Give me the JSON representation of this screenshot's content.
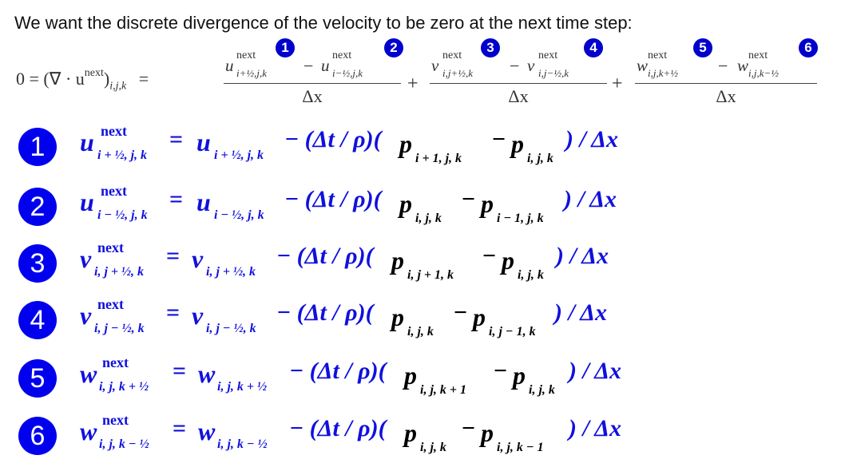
{
  "intro": "We want the discrete divergence of the velocity to be zero at the next time step:",
  "divergence": {
    "lhs": "0 = (∇ · u",
    "lhs_sup": "next",
    "lhs_close": ")",
    "lhs_sub": "i,j,k",
    "equals": "=",
    "plus": "+",
    "minus": "−",
    "next": "next",
    "denominator": "Δx",
    "fractions": [
      {
        "var": "u",
        "sub_a": "i+½,j,k",
        "sub_b": "i−½,j,k",
        "badge_a": "1",
        "badge_b": "2"
      },
      {
        "var": "v",
        "sub_a": "i,j+½,k",
        "sub_b": "i,j−½,k",
        "badge_a": "3",
        "badge_b": "4"
      },
      {
        "var": "w",
        "sub_a": "i,j,k+½",
        "sub_b": "i,j,k−½",
        "badge_a": "5",
        "badge_b": "6"
      }
    ]
  },
  "updates": [
    {
      "badge": "1",
      "var": "u",
      "next": "next",
      "sub": "i + ½, j, k",
      "coef": "− (Δt / ρ)(",
      "p": "p",
      "p1_sub": "i + 1, j, k",
      "minus": "−",
      "p2_sub": "i, j, k",
      "tail": ") / Δx"
    },
    {
      "badge": "2",
      "var": "u",
      "next": "next",
      "sub": "i − ½, j, k",
      "coef": "− (Δt / ρ)(",
      "p": "p",
      "p1_sub": "i, j, k",
      "minus": "−",
      "p2_sub": "i − 1, j, k",
      "tail": ") / Δx"
    },
    {
      "badge": "3",
      "var": "v",
      "next": "next",
      "sub": "i, j + ½, k",
      "coef": "− (Δt / ρ)(",
      "p": "p",
      "p1_sub": "i, j + 1, k",
      "minus": "−",
      "p2_sub": "i, j, k",
      "tail": ") / Δx"
    },
    {
      "badge": "4",
      "var": "v",
      "next": "next",
      "sub": "i, j − ½, k",
      "coef": "− (Δt / ρ)(",
      "p": "p",
      "p1_sub": "i, j, k",
      "minus": "−",
      "p2_sub": "i, j − 1, k",
      "tail": ") / Δx"
    },
    {
      "badge": "5",
      "var": "w",
      "next": "next",
      "sub": "i, j, k + ½",
      "coef": "− (Δt / ρ)(",
      "p": "p",
      "p1_sub": "i, j, k + 1",
      "minus": "−",
      "p2_sub": "i, j, k",
      "tail": ") / Δx"
    },
    {
      "badge": "6",
      "var": "w",
      "next": "next",
      "sub": "i, j, k − ½",
      "coef": "− (Δt / ρ)(",
      "p": "p",
      "p1_sub": "i, j, k",
      "minus": "−",
      "p2_sub": "i, j, k − 1",
      "tail": ") / Δx"
    }
  ],
  "colors": {
    "badge": "#0000ee",
    "equation_blue": "#1010dd",
    "pressure": "#000000"
  }
}
